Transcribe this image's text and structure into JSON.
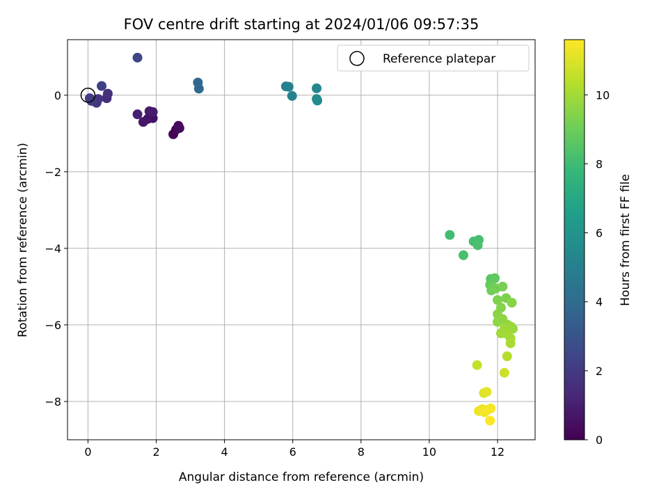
{
  "chart_data": {
    "type": "scatter",
    "title": "FOV centre drift starting at 2024/01/06 09:57:35",
    "xlabel": "Angular distance from reference (arcmin)",
    "ylabel": "Rotation from reference (arcmin)",
    "xlim": [
      -0.6,
      13.1
    ],
    "ylim": [
      -9.0,
      1.45
    ],
    "xticks": [
      0,
      2,
      4,
      6,
      8,
      10,
      12
    ],
    "yticks": [
      0,
      -2,
      -4,
      -6,
      -8
    ],
    "grid": true,
    "legend": {
      "label": "Reference platepar",
      "placement": "top-right"
    },
    "reference_point": {
      "x": 0,
      "y": 0
    },
    "colorbar": {
      "label": "Hours from first FF file",
      "colormap": "viridis",
      "range": [
        0,
        11.6
      ],
      "ticks": [
        0,
        2,
        4,
        6,
        8,
        10
      ],
      "colors": [
        "#440154",
        "#482878",
        "#3e4989",
        "#31688e",
        "#26828e",
        "#1f9e89",
        "#35b779",
        "#6ece58",
        "#b5de2b",
        "#fde725"
      ]
    },
    "points": [
      {
        "x": 2.5,
        "y": -1.02,
        "c": 0.1
      },
      {
        "x": 2.58,
        "y": -0.9,
        "c": 0.2
      },
      {
        "x": 2.65,
        "y": -0.8,
        "c": 0.3
      },
      {
        "x": 2.68,
        "y": -0.86,
        "c": 0.35
      },
      {
        "x": 1.9,
        "y": -0.6,
        "c": 0.5
      },
      {
        "x": 1.75,
        "y": -0.62,
        "c": 0.6
      },
      {
        "x": 1.62,
        "y": -0.7,
        "c": 0.7
      },
      {
        "x": 1.8,
        "y": -0.42,
        "c": 0.8
      },
      {
        "x": 1.9,
        "y": -0.44,
        "c": 0.9
      },
      {
        "x": 1.45,
        "y": -0.5,
        "c": 1.0
      },
      {
        "x": 0.55,
        "y": -0.08,
        "c": 1.5
      },
      {
        "x": 0.58,
        "y": 0.04,
        "c": 1.6
      },
      {
        "x": 0.3,
        "y": -0.1,
        "c": 1.8
      },
      {
        "x": 0.25,
        "y": -0.2,
        "c": 1.9
      },
      {
        "x": 0.1,
        "y": -0.15,
        "c": 2.0
      },
      {
        "x": 0.05,
        "y": -0.08,
        "c": 2.1
      },
      {
        "x": 0.4,
        "y": 0.24,
        "c": 2.2
      },
      {
        "x": 1.45,
        "y": 0.98,
        "c": 2.5
      },
      {
        "x": 3.22,
        "y": 0.33,
        "c": 3.8
      },
      {
        "x": 3.25,
        "y": 0.17,
        "c": 3.9
      },
      {
        "x": 5.8,
        "y": 0.23,
        "c": 5.0
      },
      {
        "x": 5.88,
        "y": 0.22,
        "c": 5.1
      },
      {
        "x": 5.98,
        "y": -0.02,
        "c": 5.2
      },
      {
        "x": 6.7,
        "y": 0.18,
        "c": 5.4
      },
      {
        "x": 6.7,
        "y": -0.1,
        "c": 5.5
      },
      {
        "x": 6.72,
        "y": -0.14,
        "c": 5.6
      },
      {
        "x": 10.6,
        "y": -3.65,
        "c": 8.0
      },
      {
        "x": 11.0,
        "y": -4.18,
        "c": 8.2
      },
      {
        "x": 11.3,
        "y": -3.82,
        "c": 8.1
      },
      {
        "x": 11.45,
        "y": -3.78,
        "c": 8.15
      },
      {
        "x": 11.42,
        "y": -3.92,
        "c": 8.2
      },
      {
        "x": 11.8,
        "y": -4.8,
        "c": 8.6
      },
      {
        "x": 11.92,
        "y": -4.78,
        "c": 8.7
      },
      {
        "x": 11.78,
        "y": -4.95,
        "c": 8.8
      },
      {
        "x": 11.85,
        "y": -5.0,
        "c": 8.9
      },
      {
        "x": 11.82,
        "y": -5.1,
        "c": 9.0
      },
      {
        "x": 11.95,
        "y": -5.05,
        "c": 9.1
      },
      {
        "x": 12.15,
        "y": -5.0,
        "c": 9.2
      },
      {
        "x": 12.0,
        "y": -5.35,
        "c": 9.3
      },
      {
        "x": 12.25,
        "y": -5.3,
        "c": 9.3
      },
      {
        "x": 12.1,
        "y": -5.55,
        "c": 9.4
      },
      {
        "x": 12.42,
        "y": -5.42,
        "c": 9.5
      },
      {
        "x": 12.0,
        "y": -5.72,
        "c": 9.5
      },
      {
        "x": 12.15,
        "y": -5.85,
        "c": 9.6
      },
      {
        "x": 12.0,
        "y": -5.92,
        "c": 9.6
      },
      {
        "x": 12.3,
        "y": -6.0,
        "c": 9.7
      },
      {
        "x": 12.4,
        "y": -6.05,
        "c": 9.8
      },
      {
        "x": 12.45,
        "y": -6.1,
        "c": 9.8
      },
      {
        "x": 12.2,
        "y": -6.1,
        "c": 9.9
      },
      {
        "x": 12.1,
        "y": -6.22,
        "c": 9.9
      },
      {
        "x": 12.3,
        "y": -6.25,
        "c": 10.0
      },
      {
        "x": 12.38,
        "y": -6.35,
        "c": 10.0
      },
      {
        "x": 12.38,
        "y": -6.48,
        "c": 10.1
      },
      {
        "x": 12.28,
        "y": -6.82,
        "c": 10.3
      },
      {
        "x": 11.4,
        "y": -7.05,
        "c": 10.6
      },
      {
        "x": 12.2,
        "y": -7.25,
        "c": 10.7
      },
      {
        "x": 11.6,
        "y": -7.78,
        "c": 11.0
      },
      {
        "x": 11.68,
        "y": -7.75,
        "c": 11.1
      },
      {
        "x": 11.45,
        "y": -8.25,
        "c": 11.3
      },
      {
        "x": 11.55,
        "y": -8.2,
        "c": 11.3
      },
      {
        "x": 11.62,
        "y": -8.28,
        "c": 11.4
      },
      {
        "x": 11.7,
        "y": -8.22,
        "c": 11.4
      },
      {
        "x": 11.8,
        "y": -8.18,
        "c": 11.5
      },
      {
        "x": 11.78,
        "y": -8.5,
        "c": 11.6
      }
    ]
  }
}
